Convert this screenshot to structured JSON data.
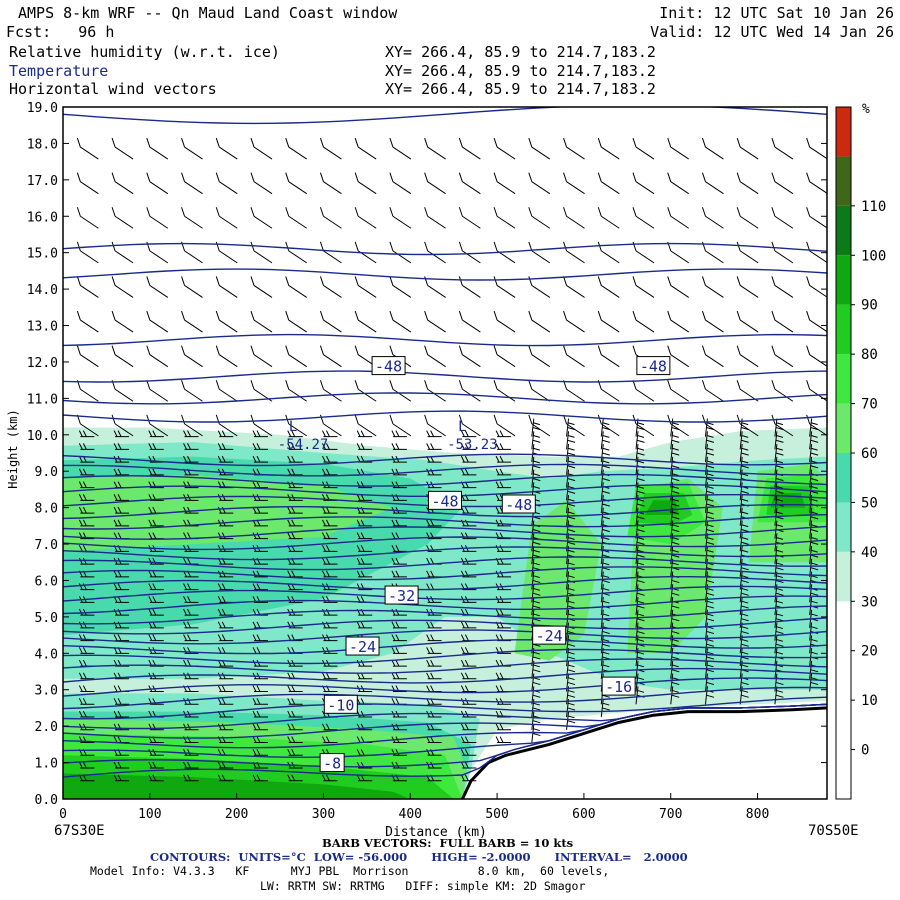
{
  "header": {
    "title": "AMPS 8-km WRF -- Qn Maud Land Coast window",
    "forecast": "Fcst:   96 h",
    "init": "Init: 12 UTC Sat 10 Jan 26",
    "valid": "Valid: 12 UTC Wed 14 Jan 26",
    "fields": [
      {
        "name": "Relative humidity (w.r.t. ice)",
        "xy": "XY= 266.4, 85.9 to 214.7,183.2"
      },
      {
        "name": "Temperature",
        "xy": "XY= 266.4, 85.9 to 214.7,183.2"
      },
      {
        "name": "Horizontal wind vectors",
        "xy": "XY= 266.4, 85.9 to 214.7,183.2"
      }
    ]
  },
  "axes": {
    "ylabel": "Height (km)",
    "xlabel": "Distance (km)",
    "left_endpoint": "67S30E",
    "right_endpoint": "70S50E"
  },
  "footer": {
    "barb": "BARB VECTORS:  FULL BARB = 10 kts",
    "contours": "CONTOURS:  UNITS=°C  LOW= -56.000      HIGH= -2.0000      INTERVAL=   2.0000",
    "model_line1": "Model Info: V4.3.3   KF      MYJ PBL  Morrison          8.0 km,  60 levels,",
    "model_line2": "LW: RRTM SW: RRTMG   DIFF: simple KM: 2D Smagor"
  },
  "colorbar": {
    "unit": "%",
    "tick_labels": [
      "0",
      "10",
      "20",
      "30",
      "40",
      "50",
      "60",
      "70",
      "80",
      "90",
      "100",
      "110"
    ],
    "bins": [
      {
        "from": -10,
        "to": 30,
        "color": "#ffffff"
      },
      {
        "from": 30,
        "to": 40,
        "color": "#c6f0dc"
      },
      {
        "from": 40,
        "to": 50,
        "color": "#7fe8c8"
      },
      {
        "from": 50,
        "to": 60,
        "color": "#48d9ad"
      },
      {
        "from": 60,
        "to": 70,
        "color": "#6ce86c"
      },
      {
        "from": 70,
        "to": 80,
        "color": "#3ee83e"
      },
      {
        "from": 80,
        "to": 90,
        "color": "#1fcc1f"
      },
      {
        "from": 90,
        "to": 100,
        "color": "#10a810"
      },
      {
        "from": 100,
        "to": 110,
        "color": "#0d7a18"
      },
      {
        "from": 110,
        "to": 120,
        "color": "#40661a"
      },
      {
        "from": 120,
        "to": 130,
        "color": "#cc2a10"
      }
    ]
  },
  "chart_data": {
    "type": "heatmap",
    "title": "Relative humidity (w.r.t. ice), Temperature, Horizontal wind vectors",
    "xlabel": "Distance (km)",
    "ylabel": "Height (km)",
    "xlim": [
      0,
      880
    ],
    "ylim": [
      0,
      19
    ],
    "x_ticks": [
      0,
      100,
      200,
      300,
      400,
      500,
      600,
      700,
      800
    ],
    "y_ticks": [
      "0.0",
      "1.0",
      "2.0",
      "3.0",
      "4.0",
      "5.0",
      "6.0",
      "7.0",
      "8.0",
      "9.0",
      "10.0",
      "11.0",
      "12.0",
      "13.0",
      "14.0",
      "15.0",
      "16.0",
      "17.0",
      "18.0",
      "19.0"
    ],
    "rh_regions": [
      {
        "level": 35,
        "points": [
          [
            0,
            0
          ],
          [
            0,
            10.2
          ],
          [
            100,
            10.2
          ],
          [
            250,
            10.0
          ],
          [
            350,
            9.7
          ],
          [
            450,
            9.5
          ],
          [
            560,
            9.4
          ],
          [
            640,
            9.4
          ],
          [
            700,
            9.8
          ],
          [
            780,
            10.1
          ],
          [
            880,
            10.2
          ],
          [
            880,
            2.7
          ],
          [
            800,
            2.6
          ],
          [
            720,
            2.5
          ],
          [
            660,
            2.4
          ],
          [
            560,
            2.2
          ],
          [
            500,
            1.9
          ],
          [
            470,
            0.8
          ],
          [
            460,
            0
          ]
        ]
      },
      {
        "level": 45,
        "points": [
          [
            0,
            0
          ],
          [
            0,
            9.7
          ],
          [
            150,
            9.8
          ],
          [
            300,
            9.5
          ],
          [
            420,
            9.3
          ],
          [
            500,
            9.0
          ],
          [
            560,
            8.8
          ],
          [
            620,
            9.0
          ],
          [
            700,
            9.1
          ],
          [
            800,
            9.3
          ],
          [
            880,
            9.4
          ],
          [
            880,
            3.0
          ],
          [
            820,
            3.0
          ],
          [
            700,
            3.0
          ],
          [
            640,
            3.2
          ],
          [
            560,
            4.0
          ],
          [
            500,
            5.0
          ],
          [
            440,
            5.0
          ],
          [
            380,
            4.0
          ],
          [
            300,
            3.5
          ],
          [
            150,
            3.3
          ],
          [
            0,
            3.3
          ]
        ]
      },
      {
        "level": 45,
        "points": [
          [
            0,
            0
          ],
          [
            0,
            2.9
          ],
          [
            150,
            2.9
          ],
          [
            300,
            2.7
          ],
          [
            420,
            2.6
          ],
          [
            480,
            2.2
          ],
          [
            470,
            0.8
          ],
          [
            460,
            0
          ]
        ]
      },
      {
        "level": 55,
        "points": [
          [
            0,
            0
          ],
          [
            0,
            2.4
          ],
          [
            150,
            2.4
          ],
          [
            300,
            2.3
          ],
          [
            420,
            2.1
          ],
          [
            470,
            1.5
          ],
          [
            460,
            0
          ]
        ]
      },
      {
        "level": 55,
        "points": [
          [
            0,
            4.5
          ],
          [
            0,
            9.3
          ],
          [
            150,
            9.4
          ],
          [
            300,
            9.2
          ],
          [
            400,
            8.8
          ],
          [
            460,
            8.0
          ],
          [
            420,
            7.0
          ],
          [
            300,
            5.5
          ],
          [
            150,
            4.8
          ]
        ]
      },
      {
        "level": 65,
        "points": [
          [
            0,
            0
          ],
          [
            0,
            2.2
          ],
          [
            200,
            2.1
          ],
          [
            350,
            1.9
          ],
          [
            450,
            1.7
          ],
          [
            465,
            0.8
          ],
          [
            460,
            0
          ]
        ]
      },
      {
        "level": 65,
        "points": [
          [
            0,
            6.8
          ],
          [
            0,
            8.8
          ],
          [
            150,
            8.9
          ],
          [
            300,
            8.6
          ],
          [
            380,
            8.0
          ],
          [
            300,
            7.2
          ],
          [
            150,
            7.0
          ]
        ]
      },
      {
        "level": 65,
        "points": [
          [
            520,
            4.0
          ],
          [
            540,
            7.5
          ],
          [
            580,
            8.2
          ],
          [
            620,
            7.0
          ],
          [
            600,
            4.5
          ],
          [
            560,
            3.8
          ]
        ]
      },
      {
        "level": 65,
        "points": [
          [
            650,
            4.0
          ],
          [
            660,
            8.5
          ],
          [
            720,
            8.8
          ],
          [
            760,
            8.0
          ],
          [
            740,
            5.0
          ],
          [
            700,
            4.0
          ]
        ]
      },
      {
        "level": 65,
        "points": [
          [
            790,
            6.5
          ],
          [
            800,
            9.0
          ],
          [
            860,
            9.2
          ],
          [
            880,
            8.8
          ],
          [
            880,
            6.5
          ]
        ]
      },
      {
        "level": 75,
        "points": [
          [
            0,
            0
          ],
          [
            0,
            1.8
          ],
          [
            200,
            1.7
          ],
          [
            350,
            1.5
          ],
          [
            440,
            1.2
          ],
          [
            460,
            0
          ]
        ]
      },
      {
        "level": 75,
        "points": [
          [
            650,
            7.2
          ],
          [
            660,
            8.6
          ],
          [
            720,
            8.7
          ],
          [
            740,
            7.6
          ],
          [
            700,
            7.0
          ]
        ]
      },
      {
        "level": 75,
        "points": [
          [
            800,
            7.6
          ],
          [
            810,
            8.8
          ],
          [
            860,
            8.9
          ],
          [
            880,
            8.6
          ],
          [
            880,
            7.6
          ]
        ]
      },
      {
        "level": 85,
        "points": [
          [
            0,
            0
          ],
          [
            0,
            1.2
          ],
          [
            150,
            1.1
          ],
          [
            300,
            0.9
          ],
          [
            420,
            0.6
          ],
          [
            450,
            0
          ]
        ]
      },
      {
        "level": 85,
        "points": [
          [
            660,
            7.6
          ],
          [
            670,
            8.4
          ],
          [
            715,
            8.4
          ],
          [
            725,
            7.8
          ],
          [
            700,
            7.5
          ]
        ]
      },
      {
        "level": 85,
        "points": [
          [
            810,
            7.8
          ],
          [
            815,
            8.6
          ],
          [
            860,
            8.6
          ],
          [
            865,
            7.8
          ]
        ]
      },
      {
        "level": 95,
        "points": [
          [
            0,
            0
          ],
          [
            0,
            0.7
          ],
          [
            150,
            0.6
          ],
          [
            300,
            0.4
          ],
          [
            380,
            0.2
          ],
          [
            400,
            0
          ]
        ]
      },
      {
        "level": 95,
        "points": [
          [
            670,
            7.8
          ],
          [
            680,
            8.2
          ],
          [
            705,
            8.2
          ],
          [
            710,
            7.8
          ]
        ]
      },
      {
        "level": 95,
        "points": [
          [
            815,
            8.0
          ],
          [
            820,
            8.4
          ],
          [
            850,
            8.4
          ],
          [
            855,
            8.0
          ]
        ]
      }
    ],
    "terrain": [
      [
        460,
        0
      ],
      [
        470,
        0.5
      ],
      [
        490,
        1.0
      ],
      [
        510,
        1.2
      ],
      [
        560,
        1.5
      ],
      [
        600,
        1.8
      ],
      [
        640,
        2.1
      ],
      [
        680,
        2.3
      ],
      [
        720,
        2.4
      ],
      [
        780,
        2.4
      ],
      [
        840,
        2.45
      ],
      [
        880,
        2.5
      ]
    ],
    "temperature_contours": {
      "units": "°C",
      "low": -56,
      "high": -2,
      "interval": 2,
      "labels": [
        {
          "text": "-48",
          "x": 375,
          "y": 11.9
        },
        {
          "text": "-48",
          "x": 680,
          "y": 11.9
        },
        {
          "text": "-48",
          "x": 440,
          "y": 8.2
        },
        {
          "text": "-48",
          "x": 525,
          "y": 8.1
        },
        {
          "text": "-32",
          "x": 390,
          "y": 5.6
        },
        {
          "text": "-24",
          "x": 345,
          "y": 4.2
        },
        {
          "text": "-24",
          "x": 560,
          "y": 4.5
        },
        {
          "text": "-16",
          "x": 640,
          "y": 3.1
        },
        {
          "text": "-10",
          "x": 320,
          "y": 2.6
        },
        {
          "text": "-8",
          "x": 310,
          "y": 1.0
        }
      ],
      "extrema": [
        {
          "type": "L",
          "value": "-54.27",
          "x": 265,
          "y": 10.0
        },
        {
          "type": "L",
          "value": "-53.23",
          "x": 460,
          "y": 10.0
        }
      ]
    }
  }
}
